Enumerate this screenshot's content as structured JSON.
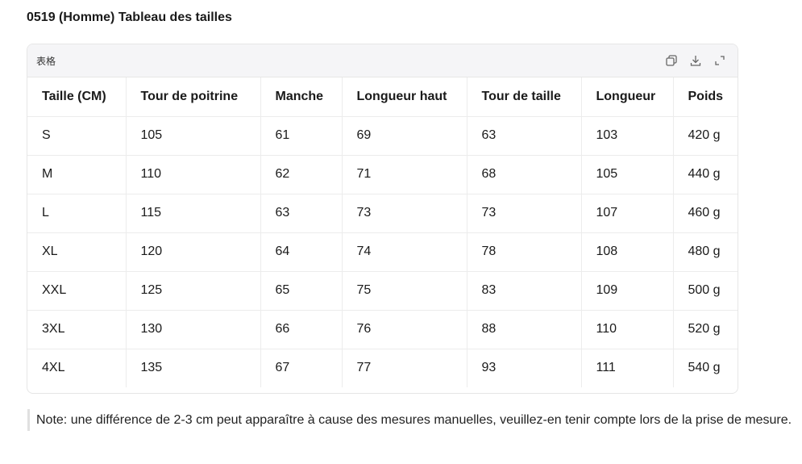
{
  "header": {
    "title": "0519 (Homme) Tableau des tailles"
  },
  "table": {
    "label": "表格",
    "headers": [
      "Taille (CM)",
      "Tour de poitrine",
      "Manche",
      "Longueur haut",
      "Tour de taille",
      "Longueur",
      "Poids"
    ],
    "rows": [
      [
        "S",
        "105",
        "61",
        "69",
        "63",
        "103",
        "420 g"
      ],
      [
        "M",
        "110",
        "62",
        "71",
        "68",
        "105",
        "440 g"
      ],
      [
        "L",
        "115",
        "63",
        "73",
        "73",
        "107",
        "460 g"
      ],
      [
        "XL",
        "120",
        "64",
        "74",
        "78",
        "108",
        "480 g"
      ],
      [
        "XXL",
        "125",
        "65",
        "75",
        "83",
        "109",
        "500 g"
      ],
      [
        "3XL",
        "130",
        "66",
        "76",
        "88",
        "110",
        "520 g"
      ],
      [
        "4XL",
        "135",
        "67",
        "77",
        "93",
        "111",
        "540 g"
      ]
    ]
  },
  "note": "Note: une différence de 2-3 cm peut apparaître à cause des mesures manuelles, veuillez-en tenir compte lors de la prise de mesure."
}
